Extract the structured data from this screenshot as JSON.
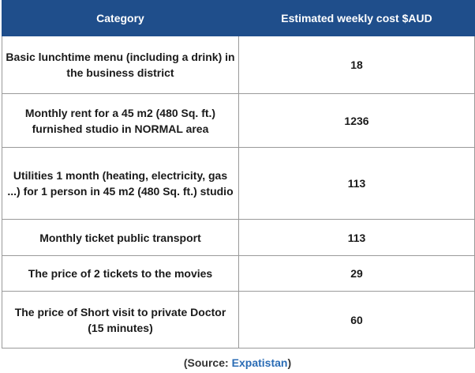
{
  "table": {
    "header": [
      "Category",
      "Estimated weekly cost $AUD"
    ],
    "rows": [
      [
        "Basic lunchtime menu (including a drink) in the business district",
        18
      ],
      [
        "Monthly rent for a 45 m2 (480 Sq. ft.) furnished studio in NORMAL area",
        1236
      ],
      [
        "Utilities 1 month (heating, electricity, gas ...) for 1 person in 45 m2 (480 Sq. ft.) studio",
        113
      ],
      [
        "Monthly ticket public transport",
        113
      ],
      [
        "The price of 2 tickets to the movies",
        29
      ],
      [
        "The price of Short visit to private Doctor (15 minutes)",
        60
      ]
    ]
  },
  "source": {
    "prefix": "(Source:",
    "link": "Expatistan",
    "suffix": ")"
  }
}
